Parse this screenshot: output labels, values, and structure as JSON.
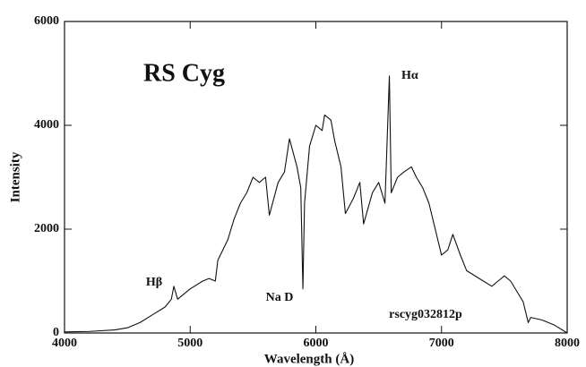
{
  "chart_data": {
    "type": "line",
    "title": "RS Cyg",
    "x_label": "Wavelength (Å)",
    "y_label": "Intensity",
    "annotations": [
      "Hα",
      "Hβ",
      "Na D",
      "rscyg032812p"
    ],
    "x": [
      4000,
      4200,
      4400,
      4500,
      4600,
      4700,
      4800,
      4850,
      4870,
      4900,
      5000,
      5100,
      5150,
      5200,
      5220,
      5300,
      5350,
      5400,
      5450,
      5500,
      5550,
      5600,
      5630,
      5700,
      5750,
      5790,
      5850,
      5880,
      5897,
      5910,
      5950,
      6000,
      6050,
      6070,
      6120,
      6150,
      6200,
      6235,
      6300,
      6350,
      6380,
      6450,
      6500,
      6550,
      6585,
      6600,
      6650,
      6700,
      6760,
      6800,
      6850,
      6900,
      6950,
      7000,
      7050,
      7090,
      7150,
      7200,
      7300,
      7400,
      7450,
      7500,
      7550,
      7600,
      7650,
      7690,
      7710,
      7800,
      7900,
      8000
    ],
    "values": [
      20,
      30,
      60,
      100,
      200,
      350,
      500,
      650,
      900,
      650,
      850,
      1000,
      1050,
      1000,
      1400,
      1800,
      2200,
      2500,
      2700,
      3000,
      2900,
      3000,
      2270,
      2900,
      3100,
      3740,
      3200,
      2800,
      850,
      2500,
      3600,
      4000,
      3900,
      4200,
      4100,
      3700,
      3200,
      2300,
      2600,
      2900,
      2100,
      2700,
      2900,
      2500,
      4950,
      2700,
      3000,
      3100,
      3200,
      3000,
      2800,
      2500,
      2000,
      1500,
      1600,
      1900,
      1500,
      1200,
      1050,
      900,
      1000,
      1100,
      1000,
      800,
      600,
      200,
      300,
      250,
      150,
      0
    ],
    "color": "#111111",
    "xlim": [
      4000,
      8000
    ],
    "ylim": [
      0,
      6000
    ],
    "xticks": [
      4000,
      5000,
      6000,
      7000,
      8000
    ],
    "yticks": [
      0,
      2000,
      4000,
      6000
    ]
  }
}
